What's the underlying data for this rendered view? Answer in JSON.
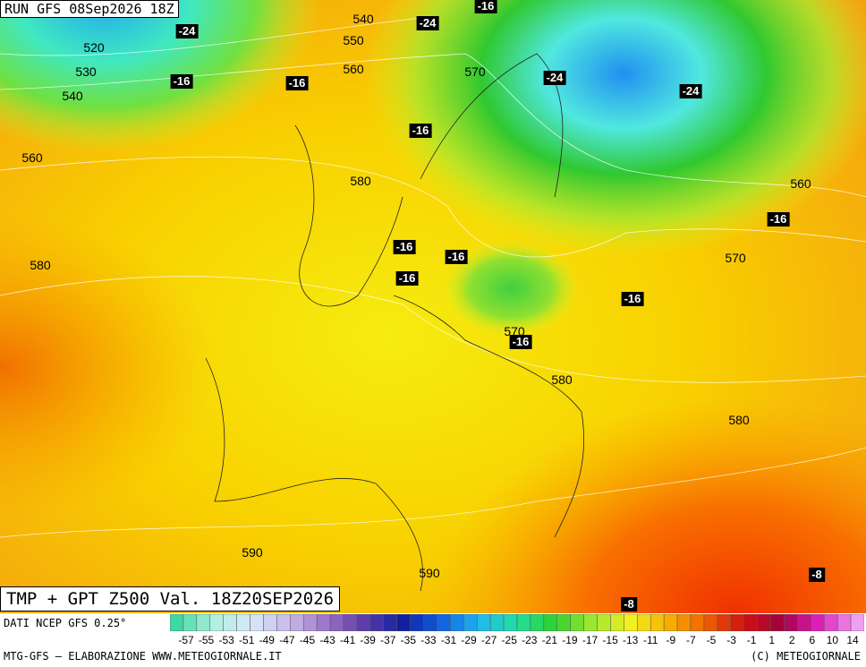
{
  "header": {
    "run": "RUN GFS 08Sep2026 18Z",
    "title": "TMP + GPT Z500 Val. 18Z20SEP2026"
  },
  "footer": {
    "source": "DATI NCEP GFS 0.25°",
    "credit": "MTG-GFS — ELABORAZIONE WWW.METEOGIORNALE.IT",
    "copyright": "(C) METEOGIORNALE"
  },
  "contour_labels": [
    540,
    520,
    550,
    530,
    560,
    570,
    540,
    560,
    580,
    560,
    580,
    570,
    570,
    580,
    580,
    590,
    590
  ],
  "temperature_labels": [
    -16,
    -24,
    -24,
    -16,
    -16,
    -24,
    -24,
    -16,
    -16,
    -16,
    -16,
    -16,
    -16,
    -16,
    -8,
    -8
  ],
  "colorbar": {
    "labels": [
      -57,
      -55,
      -53,
      -51,
      -49,
      -47,
      -45,
      -43,
      -41,
      -39,
      -37,
      -35,
      -33,
      -31,
      -29,
      -27,
      -25,
      -23,
      -21,
      -19,
      -17,
      -15,
      -13,
      -11,
      -9,
      -7,
      -5,
      -3,
      -1,
      1,
      2,
      6,
      10,
      14
    ],
    "colors": [
      "#3fd9a0",
      "#b0f0e0",
      "#d8e8f8",
      "#c8b8e8",
      "#9a70c8",
      "#5a3aa8",
      "#1020a0",
      "#1060e0",
      "#20b8f0",
      "#20e0a0",
      "#30d030",
      "#a0e830",
      "#f0f020",
      "#f8b000",
      "#f06000",
      "#d01010",
      "#a00040",
      "#e020c0",
      "#f0a0f0"
    ]
  }
}
